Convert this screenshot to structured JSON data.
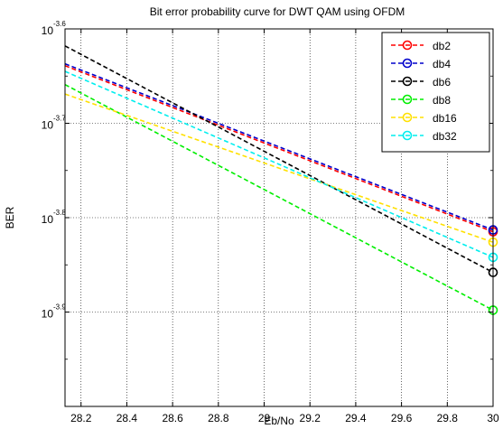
{
  "chart_data": {
    "type": "line",
    "title": "Bit error probability curve for DWT QAM using OFDM",
    "xlabel": "Eb/No",
    "ylabel": "BER",
    "x_scale": "linear",
    "y_scale": "log",
    "xlim": [
      28.13,
      30.0
    ],
    "ylim_exponent": [
      -4.0,
      -3.6
    ],
    "x_ticks": [
      "28.2",
      "28.4",
      "28.6",
      "28.8",
      "29",
      "29.2",
      "29.4",
      "29.6",
      "29.8",
      "30"
    ],
    "y_ticks": [
      {
        "exp": -3.6,
        "base": "10",
        "sup": "-3.6"
      },
      {
        "exp": -3.7,
        "base": "10",
        "sup": "-3.7"
      },
      {
        "exp": -3.8,
        "base": "10",
        "sup": "-3.8"
      },
      {
        "exp": -3.9,
        "base": "10",
        "sup": "-3.9"
      }
    ],
    "grid": true,
    "legend_position": "top-right",
    "series": [
      {
        "name": "db2",
        "color": "#ff0000",
        "x": [
          28.13,
          30.0
        ],
        "y_exponent": [
          -3.639,
          -3.815
        ]
      },
      {
        "name": "db4",
        "color": "#0000cc",
        "x": [
          28.13,
          30.0
        ],
        "y_exponent": [
          -3.637,
          -3.813
        ]
      },
      {
        "name": "db6",
        "color": "#000000",
        "x": [
          28.13,
          30.0
        ],
        "y_exponent": [
          -3.618,
          -3.858
        ]
      },
      {
        "name": "db8",
        "color": "#00ee00",
        "x": [
          28.13,
          30.0
        ],
        "y_exponent": [
          -3.659,
          -3.898
        ]
      },
      {
        "name": "db16",
        "color": "#ffe000",
        "x": [
          28.13,
          30.0
        ],
        "y_exponent": [
          -3.669,
          -3.826
        ]
      },
      {
        "name": "db32",
        "color": "#00eeee",
        "x": [
          28.13,
          30.0
        ],
        "y_exponent": [
          -3.645,
          -3.842
        ]
      }
    ]
  }
}
